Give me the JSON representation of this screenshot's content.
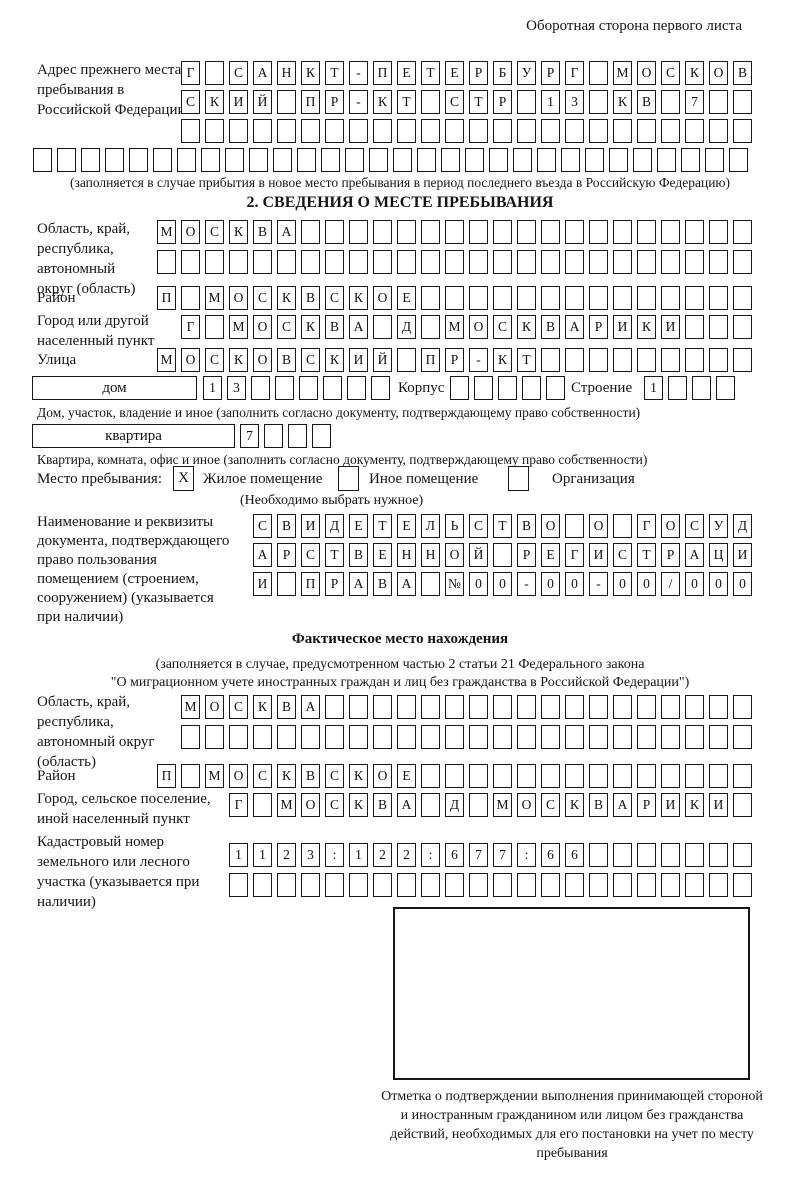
{
  "page": {
    "back_note": "Оборотная сторона первого листа"
  },
  "prev_address": {
    "label": "Адрес прежнего места пребывания в Российской Федерации",
    "rows": [
      {
        "chars": "Г САНКТ-ПЕТЕРБУРГ МОСКОВ",
        "len": 24
      },
      {
        "chars": "СКИЙ ПР-КТ СТР 13 КВ 7",
        "len": 24
      },
      {
        "chars": "",
        "len": 24
      },
      {
        "chars": "",
        "len": 30
      }
    ],
    "caption": "(заполняется в случае прибытия в новое место пребывания в период последнего въезда в Российскую Федерацию)"
  },
  "section2": {
    "title": "2. СВЕДЕНИЯ О МЕСТЕ ПРЕБЫВАНИЯ",
    "oblast": {
      "label": "Область, край, республика, автономный округ (область)",
      "rows": [
        {
          "chars": "МОСКВА",
          "len": 25
        },
        {
          "chars": "",
          "len": 25
        }
      ]
    },
    "raion": {
      "label": "Район",
      "row": {
        "chars": "П МОСКВСКОЕ",
        "len": 25
      }
    },
    "gorod": {
      "label": "Город или другой населенный пункт",
      "row": {
        "chars": "Г МОСКВА Д МОСКВАРИКИ",
        "len": 24
      }
    },
    "ulitsa": {
      "label": "Улица",
      "row": {
        "chars": "МОСКОВСКИЙ ПР-КТ",
        "len": 25
      }
    },
    "dom": {
      "box_label": "дом",
      "row": {
        "chars": "13",
        "len": 8
      },
      "korpus_label": "Корпус",
      "korpus_row": {
        "chars": "",
        "len": 5
      },
      "stroenie_label": "Строение",
      "stroenie_row": {
        "chars": "1",
        "len": 4
      },
      "caption": "Дом, участок, владение и иное (заполнить согласно документу, подтверждающему право собственности)"
    },
    "kvartira": {
      "box_label": "квартира",
      "row": {
        "chars": "7",
        "len": 4
      },
      "caption": "Квартира, комната, офис и иное (заполнить согласно документу, подтверждающему право собственности)"
    },
    "mesto": {
      "label": "Место пребывания:",
      "options": [
        {
          "label": "Жилое помещение",
          "mark": "X"
        },
        {
          "label": "Иное помещение",
          "mark": ""
        },
        {
          "label": "Организация",
          "mark": ""
        }
      ],
      "note": "(Необходимо выбрать нужное)"
    },
    "doc": {
      "label": "Наименование и реквизиты документа, подтверждающего право пользования помещением (строением, сооружением) (указывается при наличии)",
      "rows": [
        {
          "chars": "СВИДЕТЕЛЬСТВО О ГОСУД",
          "len": 21
        },
        {
          "chars": "АРСТВЕННОЙ РЕГИСТРАЦИ",
          "len": 21
        },
        {
          "chars": "И ПРАВА №00-00-00/000",
          "len": 21
        }
      ]
    }
  },
  "fact": {
    "title": "Фактическое место нахождения",
    "note1": "(заполняется в случае, предусмотренном частью 2 статьи 21 Федерального закона",
    "note2": "\"О миграционном учете иностранных граждан и лиц без гражданства в Российской Федерации\")",
    "oblast": {
      "label": "Область, край, республика, автономный округ (область)",
      "rows": [
        {
          "chars": "МОСКВА",
          "len": 24
        },
        {
          "chars": "",
          "len": 24
        }
      ]
    },
    "raion": {
      "label": "Район",
      "row": {
        "chars": "П МОСКВСКОЕ",
        "len": 25
      }
    },
    "gorod": {
      "label": "Город, сельское поселение, иной населенный пункт",
      "row": {
        "chars": "Г МОСКВА Д МОСКВАРИКИ",
        "len": 22
      }
    },
    "kadastr": {
      "label": "Кадастровый номер земельного или лесного участка (указывается при наличии)",
      "rows": [
        {
          "chars": "1123:122:677:66",
          "len": 22
        },
        {
          "chars": "",
          "len": 22
        }
      ]
    },
    "stamp_caption": "Отметка о подтверждении выполнения принимающей стороной и иностранным гражданином или лицом без гражданства действий, необходимых для его постановки на учет по месту пребывания"
  }
}
